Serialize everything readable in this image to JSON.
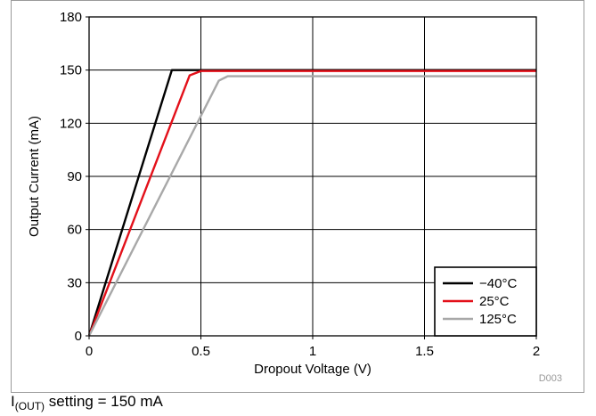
{
  "chart_data": {
    "type": "line",
    "xlabel": "Dropout Voltage (V)",
    "ylabel": "Output Current (mA)",
    "xlim": [
      0,
      2
    ],
    "ylim": [
      0,
      180
    ],
    "x_ticks": [
      0,
      0.5,
      1,
      1.5,
      2
    ],
    "x_tick_labels": [
      "0",
      "0.5",
      "1",
      "1.5",
      "2"
    ],
    "y_ticks": [
      0,
      30,
      60,
      90,
      120,
      150,
      180
    ],
    "y_tick_labels": [
      "0",
      "30",
      "60",
      "90",
      "120",
      "150",
      "180"
    ],
    "grid": true,
    "legend_position": "bottom-right",
    "figure_id": "D003",
    "series": [
      {
        "name": "−40°C",
        "color": "#000000",
        "points": [
          [
            0,
            0
          ],
          [
            0.37,
            150
          ],
          [
            2,
            150
          ]
        ]
      },
      {
        "name": "25°C",
        "color": "#e3101a",
        "points": [
          [
            0,
            0
          ],
          [
            0.45,
            147
          ],
          [
            0.5,
            149.5
          ],
          [
            2,
            149.5
          ]
        ]
      },
      {
        "name": "125°C",
        "color": "#a8a8a8",
        "points": [
          [
            0,
            0
          ],
          [
            0.58,
            144
          ],
          [
            0.62,
            146.5
          ],
          [
            2,
            146.5
          ]
        ]
      }
    ]
  },
  "footnote": {
    "symbol": "I",
    "subscript": "(OUT)",
    "text": " setting = 150 mA"
  }
}
